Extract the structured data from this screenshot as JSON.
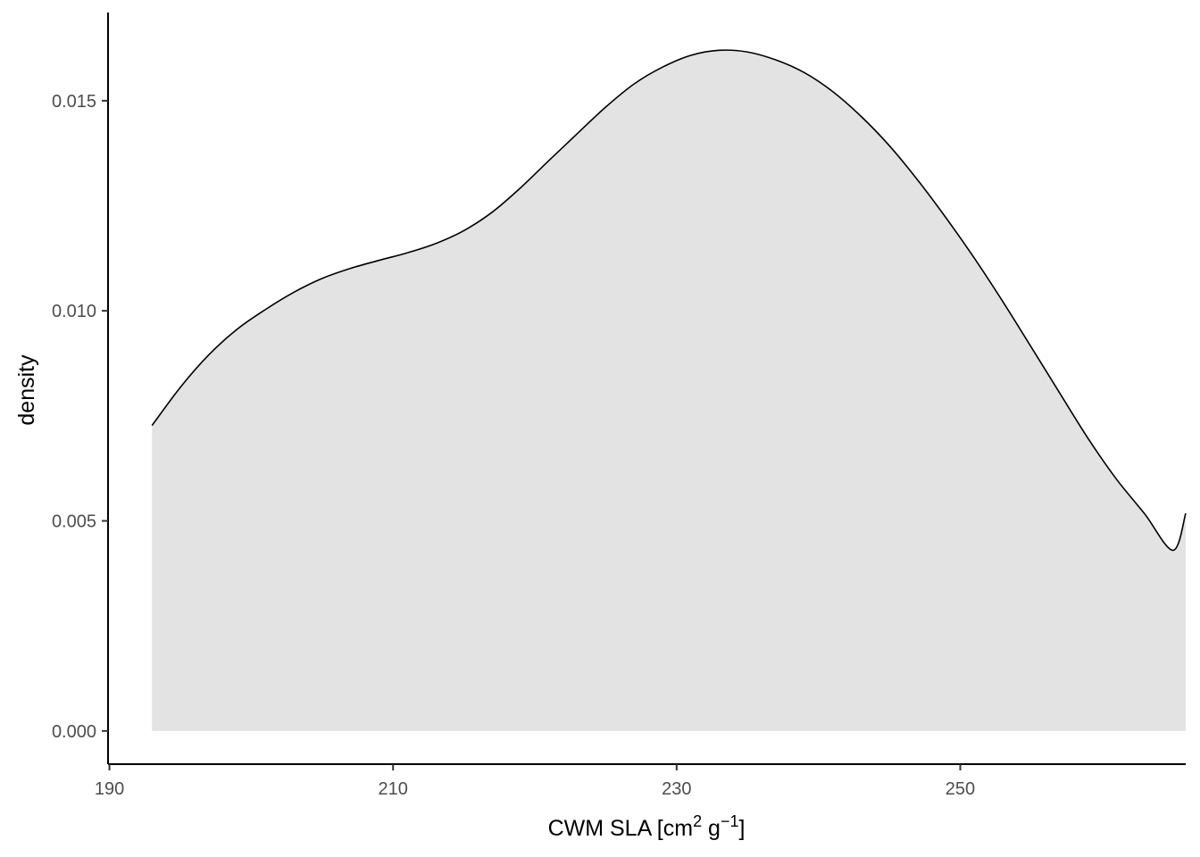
{
  "chart_data": {
    "type": "area",
    "title": "",
    "xlabel": "CWM SLA [cm",
    "xlabel_sup1": "2",
    "xlabel_mid": " g",
    "xlabel_sup2": "−1",
    "xlabel_end": "]",
    "ylabel": "density",
    "xlim": [
      189.9,
      265.9
    ],
    "ylim": [
      -0.00079,
      0.0171
    ],
    "x_ticks": [
      190,
      210,
      230,
      250
    ],
    "x_tick_labels": [
      "190",
      "210",
      "230",
      "250"
    ],
    "y_ticks": [
      0.0,
      0.005,
      0.01,
      0.015
    ],
    "y_tick_labels": [
      "0.000",
      "0.005",
      "0.010",
      "0.015"
    ],
    "grid": false,
    "legend": "none",
    "fill_color": "#e3e3e3",
    "line_color": "#000000",
    "series": [
      {
        "x": [
          193.0,
          195.0,
          197.0,
          199.0,
          201.0,
          203.0,
          205.0,
          207.0,
          209.0,
          211.0,
          213.0,
          215.0,
          217.0,
          219.0,
          221.0,
          223.0,
          225.0,
          227.0,
          229.0,
          231.0,
          233.0,
          235.0,
          237.0,
          239.0,
          241.0,
          243.0,
          245.0,
          247.0,
          249.0,
          251.0,
          253.0,
          255.0,
          257.0,
          259.0,
          261.0,
          263.0,
          265.0,
          265.9
        ],
        "values": [
          0.00727,
          0.00818,
          0.00895,
          0.00956,
          0.01003,
          0.01044,
          0.01077,
          0.01101,
          0.0112,
          0.01138,
          0.0116,
          0.01191,
          0.01235,
          0.01293,
          0.01358,
          0.01422,
          0.01485,
          0.0154,
          0.0158,
          0.01608,
          0.0162,
          0.01616,
          0.01597,
          0.01567,
          0.01522,
          0.01463,
          0.01393,
          0.01311,
          0.01221,
          0.01125,
          0.01022,
          0.00914,
          0.00805,
          0.00697,
          0.006,
          0.00517,
          0.0043,
          0.00518
        ]
      }
    ]
  }
}
